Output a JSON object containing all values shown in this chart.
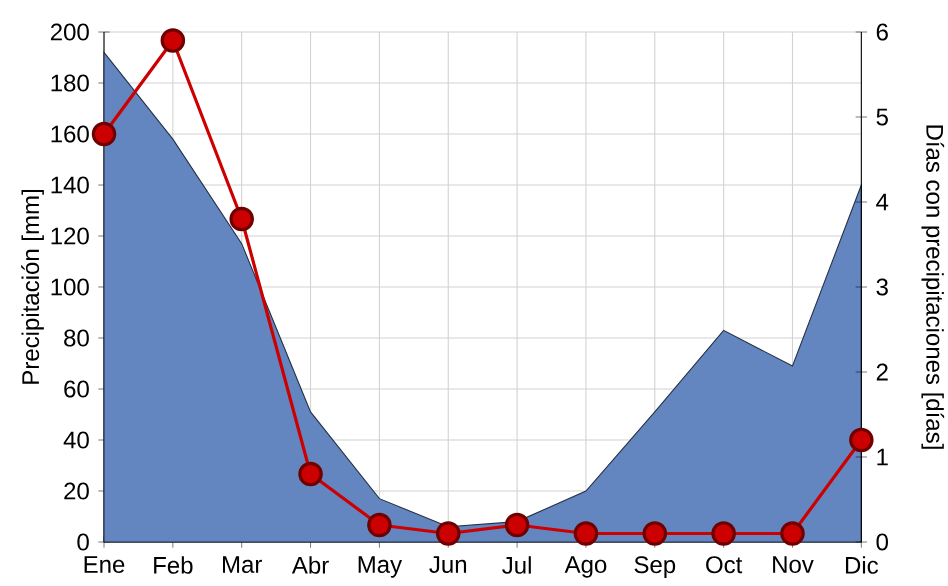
{
  "chart_data": {
    "type": "area",
    "categories": [
      "Ene",
      "Feb",
      "Mar",
      "Abr",
      "May",
      "Jun",
      "Jul",
      "Ago",
      "Sep",
      "Oct",
      "Nov",
      "Dic"
    ],
    "series": [
      {
        "color": "#6486c0",
        "values": [
          192,
          158,
          117,
          51,
          17,
          6,
          8,
          20,
          51,
          83,
          69,
          140
        ]
      },
      {
        "type": "line",
        "axis": "y2",
        "color": "#cc0000",
        "marker": "circle",
        "values": [
          4.8,
          5.9,
          3.8,
          0.8,
          0.2,
          0.1,
          0.2,
          0.1,
          0.1,
          0.1,
          0.1,
          1.2
        ]
      }
    ],
    "ylabel": "Precipitación [mm]",
    "y2label": "Días con precipitaciones [días]",
    "ylim": [
      0,
      200
    ],
    "yticks": [
      0,
      20,
      40,
      60,
      80,
      100,
      120,
      140,
      160,
      180,
      200
    ],
    "y2lim": [
      0,
      6
    ],
    "y2ticks": [
      0,
      1,
      2,
      3,
      4,
      5,
      6
    ],
    "grid": true
  }
}
